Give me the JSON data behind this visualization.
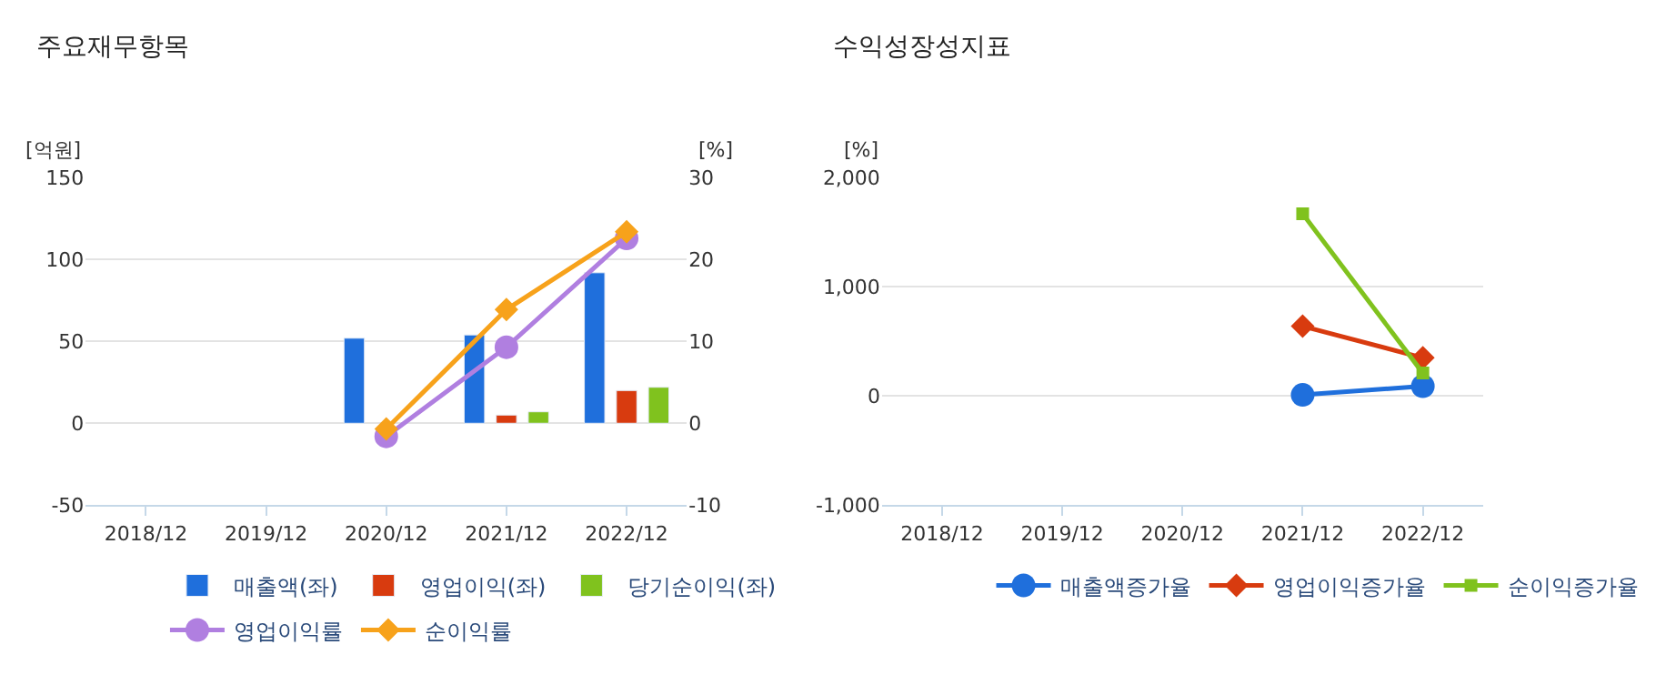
{
  "chart_data": [
    {
      "type": "bar",
      "title": "주요재무항목",
      "ylabel": "[억원]",
      "y2label": "[%]",
      "categories": [
        "2018/12",
        "2019/12",
        "2020/12",
        "2021/12",
        "2022/12"
      ],
      "ylim": [
        -50,
        150
      ],
      "yticks": [
        -50,
        0,
        50,
        100,
        150
      ],
      "y2lim": [
        -10,
        30
      ],
      "y2ticks": [
        -10,
        0,
        10,
        20,
        30
      ],
      "grid": "y",
      "legend": "bottom",
      "series": [
        {
          "name": "매출액(좌)",
          "color": "#1f6fdc",
          "values": [
            null,
            null,
            52,
            54,
            92
          ]
        },
        {
          "name": "영업이익(좌)",
          "color": "#d83b0f",
          "values": [
            null,
            null,
            null,
            5,
            20
          ]
        },
        {
          "name": "당기순이익(좌)",
          "color": "#80c21e",
          "values": [
            null,
            null,
            null,
            7,
            22
          ]
        },
        {
          "name": "영업이익률",
          "type": "line",
          "axis": "y2",
          "marker": "circle",
          "color": "#b07fe0",
          "values": [
            null,
            null,
            -1.6,
            9.3,
            22.6
          ]
        },
        {
          "name": "순이익률",
          "type": "line",
          "axis": "y2",
          "marker": "diamond",
          "color": "#f7a21b",
          "values": [
            null,
            null,
            -0.7,
            13.9,
            23.4
          ]
        }
      ]
    },
    {
      "type": "line",
      "title": "수익성장성지표",
      "ylabel": "[%]",
      "categories": [
        "2018/12",
        "2019/12",
        "2020/12",
        "2021/12",
        "2022/12"
      ],
      "ylim": [
        -1000,
        2000
      ],
      "yticks": [
        {
          "value": -1000,
          "label": "-1,000"
        },
        0,
        {
          "value": 1000,
          "label": "1,000"
        },
        {
          "value": 2000,
          "label": "2,000"
        }
      ],
      "grid": "y",
      "legend": "bottom",
      "series": [
        {
          "name": "매출액증가율",
          "marker": "circle",
          "color": "#1f6fdc",
          "values": [
            null,
            null,
            null,
            10,
            90
          ]
        },
        {
          "name": "영업이익증가율",
          "marker": "diamond",
          "color": "#d83b0f",
          "values": [
            null,
            null,
            null,
            640,
            350
          ]
        },
        {
          "name": "순이익증가율",
          "marker": "square",
          "color": "#80c21e",
          "values": [
            null,
            null,
            null,
            1670,
            210
          ]
        }
      ]
    }
  ]
}
